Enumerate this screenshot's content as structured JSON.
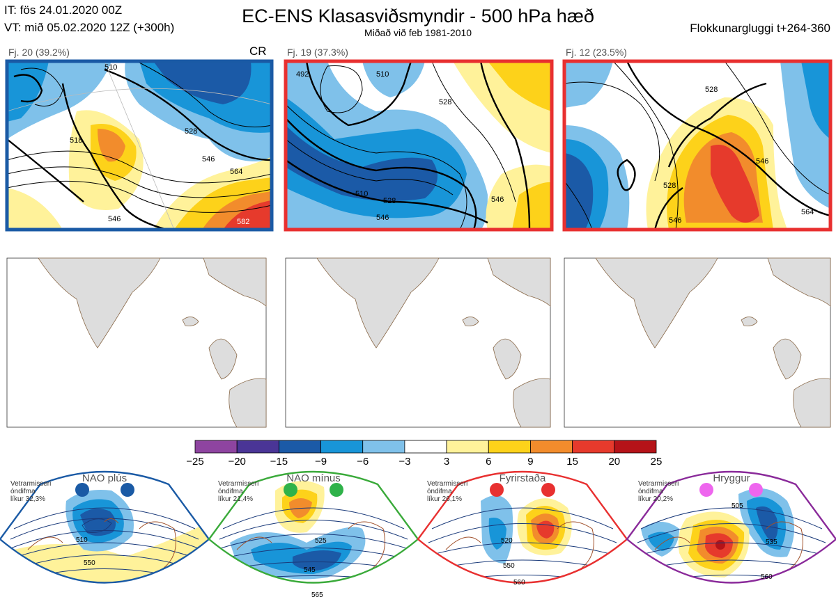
{
  "header": {
    "issue_time": "IT: fös 24.01.2020 00Z",
    "valid_time": "VT: mið 05.02.2020 12Z  (+300h)",
    "title": "EC-ENS Klasasviðsmyndir - 500 hPa hæð",
    "subtitle": "Miðað við feb 1981-2010",
    "window": "Flokkunargluggi t+264-360"
  },
  "panels": [
    {
      "label": "Fj. 20 (39.2%)",
      "tag": "CR",
      "border": "#1a5aa5",
      "contours": [
        "510",
        "528",
        "546",
        "564",
        "518",
        "546",
        "582"
      ]
    },
    {
      "label": "Fj. 19 (37.3%)",
      "tag": "",
      "border": "#e83030",
      "contours": [
        "492",
        "510",
        "528",
        "546",
        "510",
        "528",
        "546"
      ]
    },
    {
      "label": "Fj. 12 (23.5%)",
      "tag": "",
      "border": "#e83030",
      "contours": [
        "528",
        "546",
        "564",
        "528",
        "546"
      ]
    }
  ],
  "colorbar": {
    "ticks": [
      "−25",
      "−20",
      "−15",
      "−9",
      "−6",
      "−3",
      "3",
      "6",
      "9",
      "15",
      "20",
      "25"
    ],
    "colors": [
      "#8e44a0",
      "#4a3596",
      "#1b5aa7",
      "#1895d8",
      "#7fc1ea",
      "#ffffff",
      "#fff29a",
      "#fdd21a",
      "#f28c2c",
      "#e63a2c",
      "#b51318"
    ]
  },
  "regimes": [
    {
      "name": "NAO plús",
      "note": [
        "Vetrarmisseri",
        "óndifma",
        "líkur 32,3%"
      ],
      "frame": "#1a5aa5",
      "dot": "#1a5aa5",
      "contours": [
        "510",
        "550"
      ]
    },
    {
      "name": "NAO mínus",
      "note": [
        "Vetrarmisseri",
        "óndifma",
        "líkur 21,4%"
      ],
      "frame": "#3aaa3a",
      "dot": "#2fb24a",
      "contours": [
        "525",
        "545",
        "565"
      ]
    },
    {
      "name": "Fyrirstaða",
      "note": [
        "Vetrarmisseri",
        "óndifma",
        "líkur 26,1%"
      ],
      "frame": "#e83030",
      "dot": "#e83030",
      "contours": [
        "520",
        "550",
        "560"
      ]
    },
    {
      "name": "Hryggur",
      "note": [
        "Vetrarmisseri",
        "óndifma",
        "líkur 20,2%"
      ],
      "frame": "#8a2a9a",
      "dot": "#ee66ee",
      "contours": [
        "505",
        "535",
        "560"
      ]
    }
  ],
  "chart_data": {
    "type": "heatmap",
    "title": "EC-ENS Klasasviðsmyndir - 500 hPa hæð",
    "subtitle": "Miðað við feb 1981-2010",
    "clusters": [
      {
        "name": "Fj. 20",
        "percent": 39.2,
        "regime": "CR"
      },
      {
        "name": "Fj. 19",
        "percent": 37.3
      },
      {
        "name": "Fj. 12",
        "percent": 23.5
      }
    ],
    "regime_likelihoods": [
      {
        "name": "NAO plús",
        "percent": 32.3
      },
      {
        "name": "NAO mínus",
        "percent": 21.4
      },
      {
        "name": "Fyrirstaða",
        "percent": 26.1
      },
      {
        "name": "Hryggur",
        "percent": 20.2
      }
    ],
    "colorbar_levels": [
      -25,
      -20,
      -15,
      -9,
      -6,
      -3,
      3,
      6,
      9,
      15,
      20,
      25
    ]
  }
}
